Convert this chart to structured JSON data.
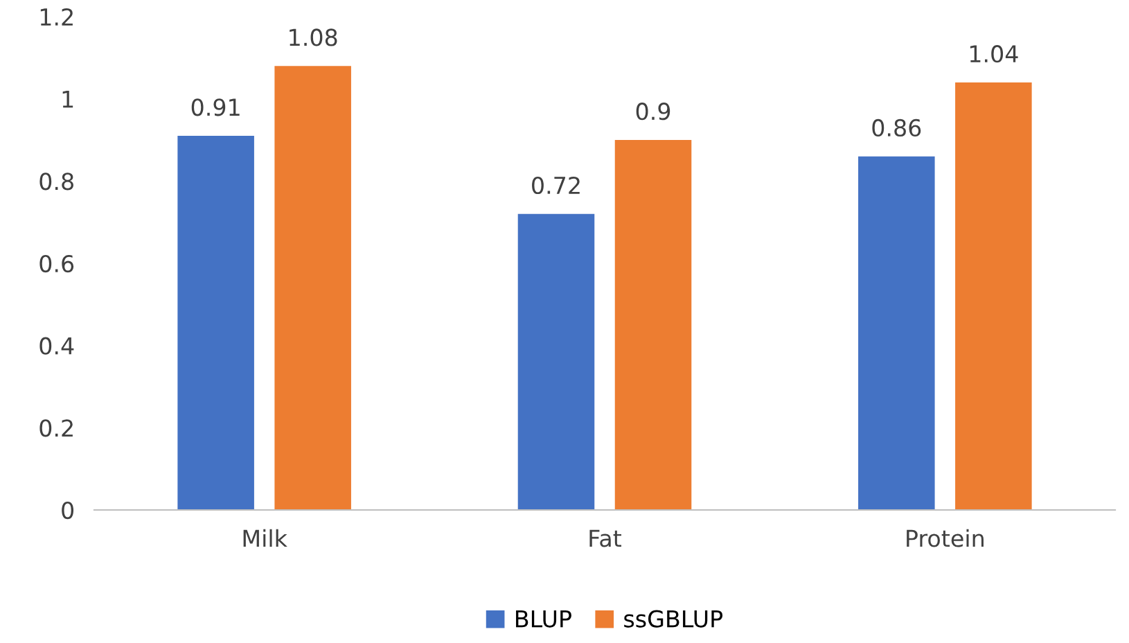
{
  "chart_data": {
    "type": "bar",
    "categories": [
      "Milk",
      "Fat",
      "Protein"
    ],
    "series": [
      {
        "name": "BLUP",
        "color": "#4472c4",
        "values": [
          0.91,
          0.72,
          0.86
        ]
      },
      {
        "name": "ssGBLUP",
        "color": "#ed7d31",
        "values": [
          1.08,
          0.9,
          1.04
        ]
      }
    ],
    "ylim": [
      0,
      1.2
    ],
    "yticks": [
      0,
      0.2,
      0.4,
      0.6,
      0.8,
      1,
      1.2
    ],
    "grid": false,
    "legend": "bottom",
    "data_labels": true
  }
}
